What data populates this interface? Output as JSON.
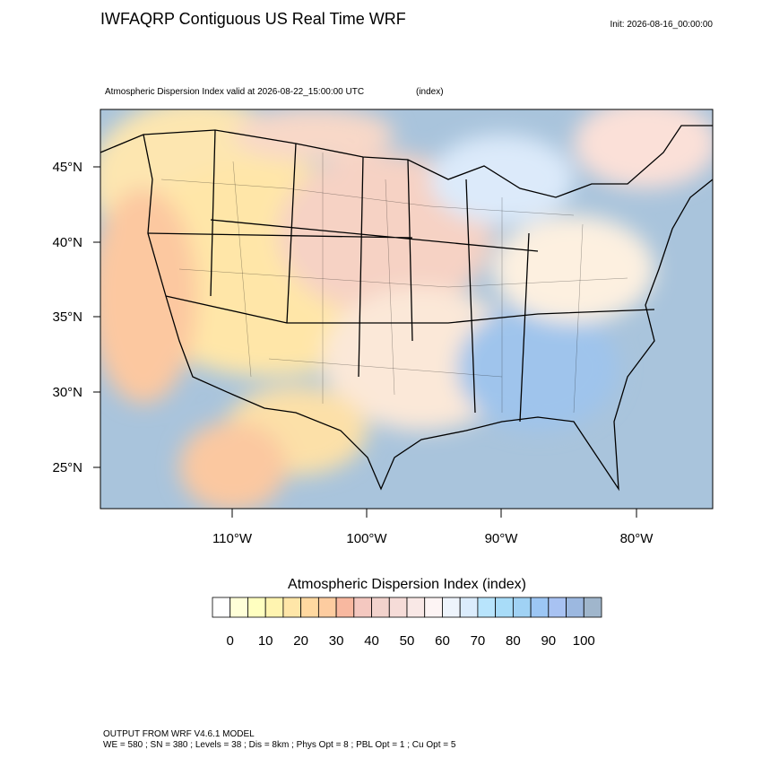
{
  "header": {
    "title": "IWFAQRP Contiguous US Real Time WRF",
    "init": "Init: 2026-08-16_00:00:00",
    "subtitle": "Atmospheric Dispersion Index valid at 2026-08-22_15:00:00 UTC",
    "units": "(index)"
  },
  "map": {
    "lat_labels": [
      "45°N",
      "40°N",
      "35°N",
      "30°N",
      "25°N"
    ],
    "lon_labels": [
      "110°W",
      "100°W",
      "90°W",
      "80°W"
    ]
  },
  "colorbar": {
    "title": "Atmospheric Dispersion Index  (index)",
    "labels": [
      0,
      10,
      20,
      30,
      40,
      50,
      60,
      70,
      80,
      90,
      100
    ],
    "colors": [
      "#ffffff",
      "#ffffd8",
      "#ffffc0",
      "#fff4b0",
      "#ffe6a8",
      "#ffd8a0",
      "#fdcca0",
      "#f8b8a0",
      "#f4c8c0",
      "#f2d2cc",
      "#f6dcd8",
      "#f9e8e6",
      "#fdf4f4",
      "#eef4fc",
      "#dbecfc",
      "#b8e4fc",
      "#a8dcf8",
      "#a0d2f4",
      "#9cc6f4",
      "#a8c2f2",
      "#9cb8e0",
      "#a0b6cc"
    ]
  },
  "footer": {
    "line1": "OUTPUT FROM WRF V4.6.1 MODEL",
    "line2": "WE = 580 ; SN = 380 ; Levels = 38 ; Dis = 8km ; Phys Opt = 8 ; PBL Opt = 1 ; Cu Opt = 5"
  }
}
